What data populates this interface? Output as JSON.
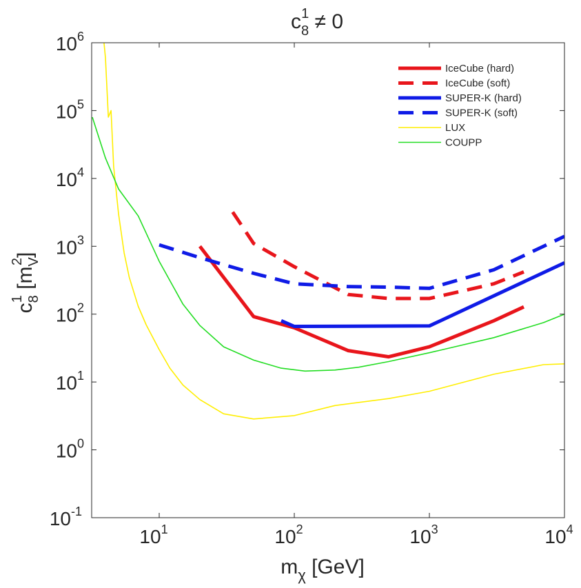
{
  "chart_data": {
    "type": "line",
    "title": "c_8^1 ≠ 0",
    "title_parts": {
      "base": "c",
      "sub": "8",
      "sup": "1",
      "rest": " ≠ 0"
    },
    "xlabel_parts": {
      "base": "m",
      "sub": "χ",
      "rest": " [GeV]"
    },
    "ylabel_parts": {
      "base": "c",
      "sub": "8",
      "sup": "1",
      "bracket_open": " [m",
      "sub2": "V",
      "sup2": "2",
      "bracket_close": "]"
    },
    "xscale": "log",
    "yscale": "log",
    "xlim": [
      3.162,
      10000
    ],
    "ylim": [
      0.1,
      1000000
    ],
    "x_ticks": [
      10,
      100,
      1000,
      10000
    ],
    "x_tick_labels": [
      {
        "base": "10",
        "exp": "1"
      },
      {
        "base": "10",
        "exp": "2"
      },
      {
        "base": "10",
        "exp": "3"
      },
      {
        "base": "10",
        "exp": "4"
      }
    ],
    "y_ticks": [
      0.1,
      1,
      10,
      100,
      1000,
      10000,
      100000,
      1000000
    ],
    "y_tick_labels": [
      {
        "base": "10",
        "exp": "-1"
      },
      {
        "base": "10",
        "exp": "0"
      },
      {
        "base": "10",
        "exp": "1"
      },
      {
        "base": "10",
        "exp": "2"
      },
      {
        "base": "10",
        "exp": "3"
      },
      {
        "base": "10",
        "exp": "4"
      },
      {
        "base": "10",
        "exp": "5"
      },
      {
        "base": "10",
        "exp": "6"
      }
    ],
    "grid": false,
    "legend_position": "top-right",
    "series": [
      {
        "name": "IceCube (hard)",
        "color": "#e8151b",
        "style": "solid",
        "weight": "thick",
        "x": [
          20,
          50,
          100,
          250,
          500,
          1000,
          3000,
          5000
        ],
        "y": [
          1000,
          92,
          63,
          29,
          23.5,
          33,
          80,
          128
        ]
      },
      {
        "name": "IceCube (soft)",
        "color": "#e8151b",
        "style": "dashed",
        "weight": "thick",
        "x": [
          35,
          50,
          100,
          250,
          500,
          1000,
          3000,
          5000
        ],
        "y": [
          3200,
          1100,
          500,
          195,
          170,
          170,
          280,
          420
        ]
      },
      {
        "name": "SUPER-K (hard)",
        "color": "#0f1be6",
        "style": "solid",
        "weight": "thick",
        "x": [
          80,
          100,
          1000,
          10000
        ],
        "y": [
          80,
          66,
          67,
          570
        ]
      },
      {
        "name": "SUPER-K (soft)",
        "color": "#0f1be6",
        "style": "dashed",
        "weight": "thick",
        "x": [
          10,
          20,
          50,
          100,
          250,
          500,
          1000,
          3000,
          10000
        ],
        "y": [
          1050,
          680,
          400,
          280,
          255,
          250,
          240,
          450,
          1400
        ]
      },
      {
        "name": "LUX",
        "color": "#ffee00",
        "style": "solid",
        "weight": "thin",
        "x": [
          3.9,
          4.0,
          4.2,
          4.4,
          4.6,
          5.0,
          5.5,
          6,
          7,
          8,
          10,
          12,
          15,
          20,
          30,
          50,
          100,
          200,
          500,
          1000,
          3000,
          7000,
          10000
        ],
        "y": [
          1000000,
          600000,
          80000,
          100000,
          15000,
          3000,
          800,
          350,
          130,
          70,
          30,
          16,
          9,
          5.5,
          3.4,
          2.85,
          3.2,
          4.5,
          5.7,
          7.3,
          13,
          18,
          18.5
        ]
      },
      {
        "name": "COUPP",
        "color": "#22dd22",
        "style": "solid",
        "weight": "thin",
        "x": [
          3.2,
          4,
          5,
          7,
          10,
          15,
          20,
          30,
          50,
          80,
          120,
          200,
          300,
          500,
          1000,
          3000,
          7000,
          10000
        ],
        "y": [
          80000,
          20000,
          7000,
          2800,
          600,
          140,
          68,
          33,
          21,
          16,
          14.5,
          15,
          16.5,
          20,
          27,
          45,
          75,
          100
        ]
      }
    ]
  }
}
